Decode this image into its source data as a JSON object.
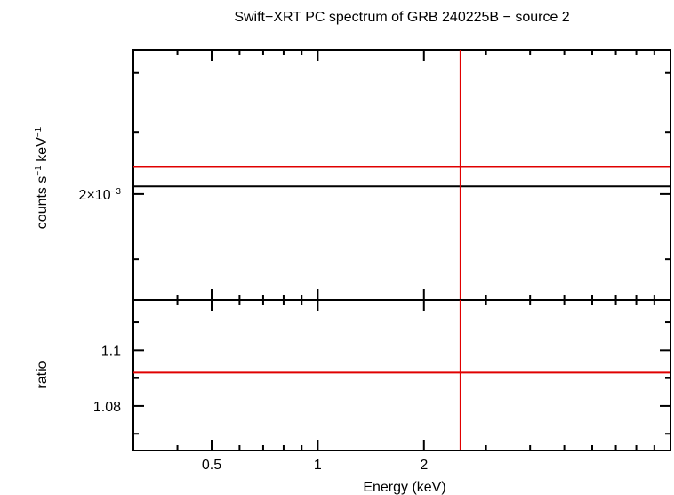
{
  "title": "Swift−XRT PC spectrum of GRB 240225B − source 2",
  "colors": {
    "axes": "#000000",
    "model": "#e00000",
    "data": "#000000"
  },
  "chart_data": [
    {
      "panel": "spectrum",
      "type": "line",
      "title": "Swift−XRT PC spectrum of GRB 240225B − source 2",
      "xlabel": "",
      "ylabel_parts": {
        "a": "counts s",
        "a_exp": "−1",
        "b": " keV",
        "b_exp": "−1"
      },
      "x_scale": "log",
      "y_scale": "log",
      "xlim": [
        0.3,
        10
      ],
      "ylim": [
        0.00184,
        0.00224
      ],
      "yticks": [
        {
          "value": 0.002,
          "label_base": "2×10",
          "label_exp": "−3"
        }
      ],
      "series": [
        {
          "role": "data",
          "color": "#000000",
          "x": [
            0.3,
            10
          ],
          "y": [
            0.002012,
            0.002012
          ]
        },
        {
          "role": "model",
          "color": "#e00000",
          "x": [
            0.3,
            10
          ],
          "y": [
            0.002043,
            0.002043
          ]
        },
        {
          "role": "model",
          "color": "#e00000",
          "x": [
            2.54,
            2.54
          ],
          "y": [
            0.00184,
            0.00224
          ]
        }
      ],
      "grid": false,
      "legend": "none"
    },
    {
      "panel": "ratio",
      "type": "line",
      "xlabel": "Energy (keV)",
      "ylabel": "ratio",
      "x_scale": "log",
      "xlim": [
        0.3,
        10
      ],
      "ylim": [
        1.064,
        1.118
      ],
      "xticks": [
        {
          "value": 0.5,
          "label": "0.5"
        },
        {
          "value": 1,
          "label": "1"
        },
        {
          "value": 2,
          "label": "2"
        }
      ],
      "yticks": [
        {
          "value": 1.08,
          "label": "1.08"
        },
        {
          "value": 1.1,
          "label": "1.1"
        }
      ],
      "series": [
        {
          "role": "model",
          "color": "#e00000",
          "x": [
            0.3,
            10
          ],
          "y": [
            1.092,
            1.092
          ]
        },
        {
          "role": "model",
          "color": "#e00000",
          "x": [
            2.54,
            2.54
          ],
          "y": [
            1.064,
            1.118
          ]
        }
      ],
      "grid": false,
      "legend": "none"
    }
  ]
}
